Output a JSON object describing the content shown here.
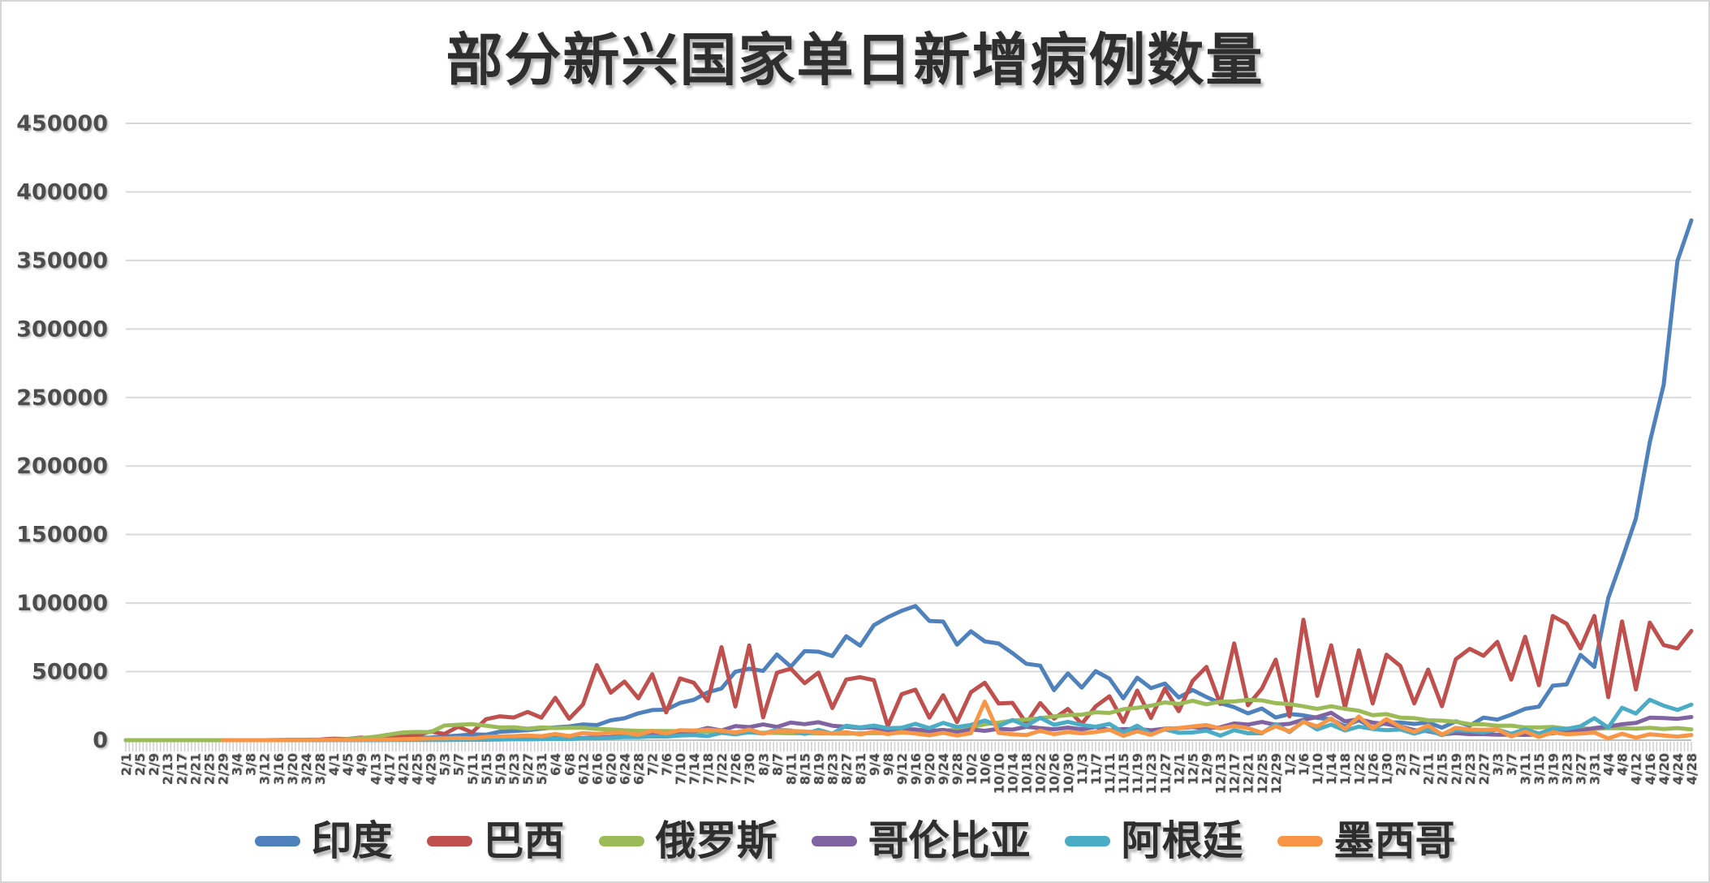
{
  "window": {
    "background_color": "#FFFFFF",
    "border_color": "#D6D6D6"
  },
  "chart_data": {
    "type": "line",
    "title": "部分新兴国家单日新增病例数量",
    "xlabel": "",
    "ylabel": "",
    "ylim": [
      0,
      450000
    ],
    "y_tick_step": 50000,
    "y_tick_labels": [
      "0",
      "50000",
      "100000",
      "150000",
      "200000",
      "250000",
      "300000",
      "350000",
      "400000",
      "450000"
    ],
    "x_days_per_label": 4,
    "x_tick_labels": [
      "2/1",
      "2/5",
      "2/9",
      "2/13",
      "2/17",
      "2/21",
      "2/25",
      "2/29",
      "3/4",
      "3/8",
      "3/12",
      "3/16",
      "3/20",
      "3/24",
      "3/28",
      "4/1",
      "4/5",
      "4/9",
      "4/13",
      "4/17",
      "4/21",
      "4/25",
      "4/29",
      "5/3",
      "5/7",
      "5/11",
      "5/15",
      "5/19",
      "5/23",
      "5/27",
      "5/31",
      "6/4",
      "6/8",
      "6/12",
      "6/16",
      "6/20",
      "6/24",
      "6/28",
      "7/2",
      "7/6",
      "7/10",
      "7/14",
      "7/18",
      "7/22",
      "7/26",
      "7/30",
      "8/3",
      "8/7",
      "8/11",
      "8/15",
      "8/19",
      "8/23",
      "8/27",
      "8/31",
      "9/4",
      "9/8",
      "9/12",
      "9/16",
      "9/20",
      "9/24",
      "9/28",
      "10/2",
      "10/6",
      "10/10",
      "10/14",
      "10/18",
      "10/22",
      "10/26",
      "10/30",
      "11/3",
      "11/7",
      "11/11",
      "11/15",
      "11/19",
      "11/23",
      "11/27",
      "12/1",
      "12/5",
      "12/9",
      "12/13",
      "12/17",
      "12/21",
      "12/25",
      "12/29",
      "1/2",
      "1/6",
      "1/10",
      "1/14",
      "1/18",
      "1/22",
      "1/26",
      "1/30",
      "2/3",
      "2/7",
      "2/11",
      "2/15",
      "2/19",
      "2/23",
      "2/27",
      "3/3",
      "3/7",
      "3/11",
      "3/15",
      "3/19",
      "3/23",
      "3/27",
      "3/31",
      "4/4",
      "4/8",
      "4/12",
      "4/16",
      "4/20",
      "4/24",
      "4/28"
    ],
    "grid": true,
    "grid_color": "#D9D9D9",
    "axis_color": "#BFBFBF",
    "tick_color": "#D2D2D2",
    "label_color": "#4D4D4D",
    "legend_position": "bottom",
    "series": [
      {
        "name": "印度",
        "color": "#4F81BD",
        "values": [
          0,
          0,
          0,
          0,
          0,
          0,
          0,
          0,
          3,
          5,
          8,
          27,
          63,
          102,
          150,
          424,
          605,
          813,
          1243,
          1118,
          1537,
          1835,
          1903,
          2676,
          3344,
          4213,
          3967,
          6154,
          6665,
          7246,
          8392,
          9304,
          9987,
          11458,
          10974,
          14516,
          15968,
          19620,
          21948,
          22252,
          27114,
          29429,
          34884,
          37724,
          49931,
          52123,
          50488,
          62538,
          53601,
          65002,
          64531,
          61408,
          75760,
          68898,
          83883,
          89706,
          94372,
          97894,
          86961,
          86508,
          69671,
          79476,
          72049,
          70496,
          63509,
          55722,
          54366,
          36470,
          48648,
          38310,
          50356,
          44879,
          30548,
          45576,
          37975,
          41322,
          31118,
          36595,
          31522,
          27071,
          24010,
          19556,
          23067,
          16504,
          19078,
          18139,
          16311,
          15158,
          10064,
          14545,
          9102,
          13052,
          12899,
          11831,
          12923,
          9121,
          13742,
          10584,
          16488,
          14989,
          18599,
          22854,
          24437,
          39726,
          40715,
          62258,
          53480,
          103558,
          131968,
          161736,
          217353,
          259170,
          349691,
          379257
        ]
      },
      {
        "name": "巴西",
        "color": "#C0504D",
        "values": [
          null,
          null,
          null,
          null,
          null,
          null,
          null,
          2,
          3,
          6,
          19,
          34,
          283,
          310,
          487,
          1138,
          852,
          1930,
          1261,
          3257,
          2498,
          3503,
          6276,
          4588,
          9888,
          5632,
          15305,
          17408,
          16508,
          20599,
          16409,
          30925,
          15654,
          25982,
          54771,
          34666,
          42725,
          30476,
          48105,
          20229,
          45048,
          41857,
          28532,
          67860,
          24578,
          69074,
          16641,
          49205,
          52160,
          41576,
          49298,
          23421,
          44235,
          45961,
          43773,
          10273,
          33523,
          36820,
          16389,
          32817,
          13155,
          34969,
          41906,
          26749,
          27235,
          12342,
          27126,
          15726,
          22724,
          11843,
          24617,
          32014,
          13345,
          36157,
          16207,
          37614,
          21138,
          43209,
          53453,
          26363,
          70574,
          25445,
          37614,
          58718,
          17341,
          87843,
          32316,
          69198,
          23671,
          65625,
          26816,
          62334,
          54096,
          26845,
          51486,
          24759,
          59091,
          66588,
          61567,
          71704,
          44178,
          75412,
          40097,
          90570,
          84926,
          66964,
          90638,
          31359,
          86652,
          37017,
          85774,
          69381,
          66964,
          79719
        ]
      },
      {
        "name": "俄罗斯",
        "color": "#9BBB59",
        "values": [
          0,
          0,
          0,
          0,
          0,
          0,
          0,
          0,
          0,
          0,
          7,
          30,
          52,
          71,
          196,
          440,
          658,
          1459,
          2558,
          4070,
          5642,
          5966,
          5841,
          10633,
          11231,
          11656,
          10598,
          9263,
          9434,
          8338,
          9268,
          8831,
          8985,
          8987,
          8248,
          7889,
          7176,
          6791,
          6760,
          6611,
          6635,
          6248,
          6234,
          5862,
          5765,
          5509,
          5394,
          5241,
          4945,
          5061,
          4828,
          4852,
          4711,
          4993,
          5110,
          5099,
          5488,
          5670,
          6148,
          6595,
          8135,
          9412,
          11615,
          12846,
          14231,
          15099,
          15971,
          17347,
          18283,
          18648,
          20396,
          19851,
          22572,
          23610,
          25173,
          27543,
          26402,
          28782,
          26190,
          28080,
          28214,
          29350,
          29018,
          27002,
          26301,
          24715,
          22851,
          24763,
          22857,
          21513,
          18241,
          19032,
          16474,
          16048,
          14494,
          14207,
          13433,
          11749,
          11534,
          10535,
          10595,
          9270,
          9299,
          9632,
          8369,
          8783,
          8156,
          8817,
          8702,
          8320,
          8995,
          8164,
          8828,
          7848
        ]
      },
      {
        "name": "哥伦比亚",
        "color": "#8064A2",
        "values": [
          null,
          null,
          null,
          null,
          null,
          null,
          null,
          null,
          null,
          1,
          9,
          22,
          37,
          71,
          88,
          110,
          79,
          65,
          67,
          230,
          237,
          281,
          352,
          267,
          368,
          429,
          477,
          640,
          704,
          1101,
          1081,
          1515,
          1110,
          1646,
          2015,
          2271,
          3171,
          3843,
          4163,
          3323,
          5335,
          6368,
          8934,
          7033,
          10284,
          9488,
          11470,
          9674,
          12830,
          11643,
          13056,
          10549,
          9789,
          8801,
          9279,
          6698,
          7813,
          7787,
          6731,
          7475,
          5839,
          7805,
          6795,
          8291,
          7697,
          9799,
          8769,
          7928,
          9190,
          7954,
          9574,
          7422,
          8026,
          8123,
          7152,
          8430,
          8709,
          9524,
          8789,
          9333,
          12196,
          11394,
          13277,
          11212,
          11879,
          14939,
          16891,
          19982,
          13695,
          15275,
          12830,
          11748,
          9933,
          7287,
          6528,
          4244,
          5115,
          4387,
          4368,
          3990,
          4079,
          3834,
          4151,
          5097,
          5839,
          7023,
          8841,
          9963,
          11579,
          12543,
          16377,
          16076,
          15581,
          16871
        ]
      },
      {
        "name": "阿根廷",
        "color": "#4BACC6",
        "values": [
          null,
          null,
          null,
          null,
          null,
          null,
          null,
          null,
          1,
          11,
          19,
          56,
          30,
          74,
          101,
          88,
          103,
          80,
          69,
          172,
          112,
          173,
          124,
          104,
          255,
          285,
          345,
          438,
          704,
          600,
          795,
          929,
          826,
          1391,
          1374,
          1634,
          2285,
          2189,
          2744,
          2632,
          3367,
          3645,
          2990,
          5344,
          4192,
          5929,
          4824,
          7513,
          7043,
          4557,
          7498,
          4741,
          10550,
          9230,
          10684,
          8713,
          9056,
          11893,
          8782,
          12625,
          9608,
          11129,
          14392,
          10324,
          14740,
          10561,
          16325,
          11242,
          13379,
          11100,
          9745,
          11859,
          5645,
          10621,
          4415,
          7846,
          5303,
          5645,
          6904,
          3308,
          7306,
          5031,
          5030,
          11650,
          5884,
          13835,
          7812,
          11396,
          7029,
          9909,
          8183,
          7264,
          7739,
          4724,
          7593,
          3609,
          7432,
          6653,
          5782,
          7747,
          4658,
          7957,
          4745,
          8328,
          8226,
          10154,
          16056,
          9169,
          23683,
          19437,
          29472,
          25157,
          22039,
          25932
        ]
      },
      {
        "name": "墨西哥",
        "color": "#F79646",
        "values": [
          null,
          null,
          null,
          null,
          null,
          null,
          null,
          1,
          2,
          3,
          4,
          29,
          39,
          65,
          132,
          163,
          253,
          260,
          442,
          450,
          729,
          970,
          1223,
          1349,
          1609,
          1305,
          2409,
          2713,
          2960,
          3463,
          2885,
          4442,
          2999,
          5222,
          4599,
          5343,
          5437,
          4050,
          6741,
          4902,
          7280,
          7051,
          7615,
          6859,
          5480,
          7730,
          4767,
          6717,
          6686,
          6345,
          5792,
          4916,
          5824,
          4129,
          6196,
          4430,
          5935,
          4771,
          3542,
          5401,
          3400,
          5099,
          28115,
          5263,
          4295,
          3699,
          6845,
          4360,
          6000,
          4999,
          5931,
          7646,
          3218,
          6426,
          3918,
          8107,
          8819,
          10008,
          11006,
          8608,
          10297,
          8747,
          5370,
          10099,
          6464,
          13345,
          10003,
          15873,
          8074,
          17165,
          8521,
          15368,
          9714,
          6065,
          10738,
          4099,
          8988,
          7785,
          7521,
          7913,
          2734,
          6323,
          2343,
          5683,
          4293,
          4767,
          5567,
          1247,
          4675,
          1793,
          4293,
          3451,
          2633,
          3818
        ]
      }
    ]
  }
}
